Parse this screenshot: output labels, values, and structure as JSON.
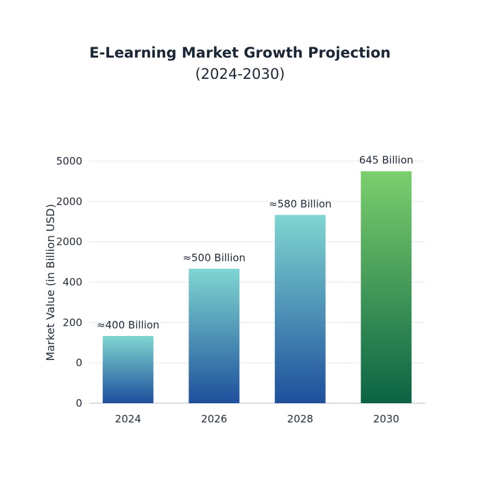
{
  "chart_data": {
    "type": "bar",
    "title_line1": "E-Learning Market Growth Projection",
    "title_line2": "(2024-2030)",
    "xlabel": "",
    "ylabel": "Market Value (in Billion USD)",
    "categories": [
      "2024",
      "2026",
      "2028",
      "2030"
    ],
    "values": [
      400,
      500,
      580,
      645
    ],
    "data_labels": [
      "≈400 Billion",
      "≈500 Billion",
      "≈580 Billion",
      "645 Billion"
    ],
    "y_tick_labels": [
      "0",
      "0",
      "200",
      "400",
      "2000",
      "2000",
      "5000"
    ],
    "grid": true,
    "bar_colors": {
      "blue_top": "#7fd6d1",
      "blue_bottom": "#1e4f9c",
      "green_top": "#7ccf6d",
      "green_bottom": "#0b6344",
      "highlight_label": "#1e6b3a"
    }
  }
}
